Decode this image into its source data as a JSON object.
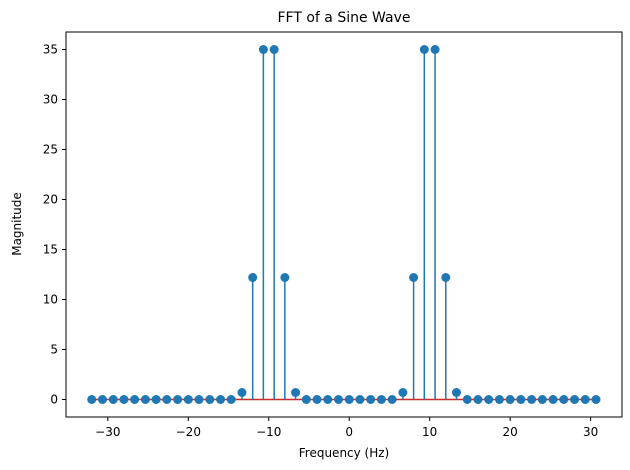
{
  "chart_data": {
    "type": "stem",
    "title": "FFT of a Sine Wave",
    "xlabel": "Frequency (Hz)",
    "ylabel": "Magnitude",
    "xlim": [
      -35.2,
      33.9
    ],
    "ylim": [
      -1.75,
      36.75
    ],
    "xticks": [
      -30,
      -20,
      -10,
      0,
      10,
      20,
      30
    ],
    "xtick_labels": [
      "−30",
      "−20",
      "−10",
      "0",
      "10",
      "20",
      "30"
    ],
    "yticks": [
      0,
      5,
      10,
      15,
      20,
      25,
      30,
      35
    ],
    "ytick_labels": [
      "0",
      "5",
      "10",
      "15",
      "20",
      "25",
      "30",
      "35"
    ],
    "grid": false,
    "stem_color": "#1f77b4",
    "baseline_color": "#d62728",
    "x": [
      -32.0,
      -30.67,
      -29.33,
      -28.0,
      -26.67,
      -25.33,
      -24.0,
      -22.67,
      -21.33,
      -20.0,
      -18.67,
      -17.33,
      -16.0,
      -14.67,
      -13.33,
      -12.0,
      -10.67,
      -9.33,
      -8.0,
      -6.67,
      -5.33,
      -4.0,
      -2.67,
      -1.33,
      0.0,
      1.33,
      2.67,
      4.0,
      5.33,
      6.67,
      8.0,
      9.33,
      10.67,
      12.0,
      13.33,
      14.67,
      16.0,
      17.33,
      18.67,
      20.0,
      21.33,
      22.67,
      24.0,
      25.33,
      26.67,
      28.0,
      29.33,
      30.67
    ],
    "y": [
      0,
      0,
      0,
      0,
      0,
      0,
      0,
      0,
      0,
      0,
      0,
      0,
      0,
      0,
      0.7,
      12.2,
      35,
      35,
      12.2,
      0.7,
      0,
      0,
      0,
      0,
      0,
      0,
      0,
      0,
      0,
      0.7,
      12.2,
      35,
      35,
      12.2,
      0.7,
      0,
      0,
      0,
      0,
      0,
      0,
      0,
      0,
      0,
      0,
      0,
      0,
      0
    ]
  }
}
